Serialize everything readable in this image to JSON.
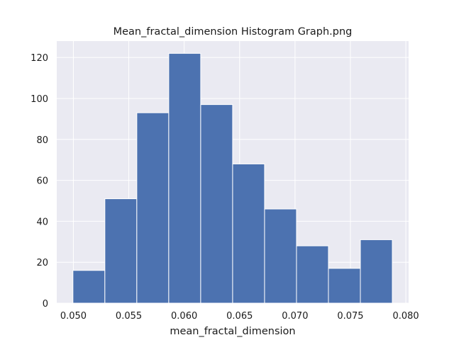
{
  "chart_data": {
    "type": "bar",
    "title": "Mean_fractal_dimension Histogram Graph.png",
    "xlabel": "mean_fractal_dimension",
    "ylabel": "",
    "bin_edges": [
      0.04996,
      0.052842,
      0.055724,
      0.058606,
      0.061488,
      0.06437,
      0.067252,
      0.070134,
      0.073016,
      0.075898,
      0.07878
    ],
    "values": [
      16,
      51,
      93,
      122,
      97,
      68,
      46,
      28,
      17,
      31
    ],
    "xlim": [
      0.0485,
      0.08025
    ],
    "ylim": [
      0,
      128
    ],
    "x_ticks": [
      0.05,
      0.055,
      0.06,
      0.065,
      0.07,
      0.075,
      0.08
    ],
    "x_tick_labels": [
      "0.050",
      "0.055",
      "0.060",
      "0.065",
      "0.070",
      "0.075",
      "0.080"
    ],
    "y_ticks": [
      0,
      20,
      40,
      60,
      80,
      100,
      120
    ],
    "y_tick_labels": [
      "0",
      "20",
      "40",
      "60",
      "80",
      "100",
      "120"
    ],
    "grid": true,
    "colors": {
      "bar": "#4c72b0",
      "background": "#eaeaf2",
      "grid": "#ffffff"
    }
  }
}
